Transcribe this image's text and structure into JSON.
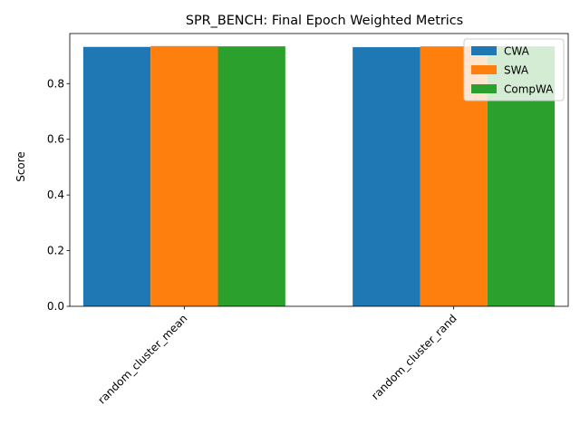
{
  "chart_data": {
    "type": "bar",
    "title": "SPR_BENCH: Final Epoch Weighted Metrics",
    "xlabel": "",
    "ylabel": "Score",
    "categories": [
      "random_cluster_mean",
      "random_cluster_rand"
    ],
    "series": [
      {
        "name": "CWA",
        "values": [
          0.932,
          0.931
        ],
        "color": "#1f77b4"
      },
      {
        "name": "SWA",
        "values": [
          0.935,
          0.934
        ],
        "color": "#ff7f0e"
      },
      {
        "name": "CompWA",
        "values": [
          0.934,
          0.934
        ],
        "color": "#2ca02c"
      }
    ],
    "ylim": [
      0,
      0.98
    ],
    "yticks": [
      "0.0",
      "0.2",
      "0.4",
      "0.6",
      "0.8"
    ],
    "ytick_values": [
      0.0,
      0.2,
      0.4,
      0.6,
      0.8
    ],
    "grid": false,
    "legend_position": "top-right",
    "xtick_rotation": "45 degrees"
  }
}
